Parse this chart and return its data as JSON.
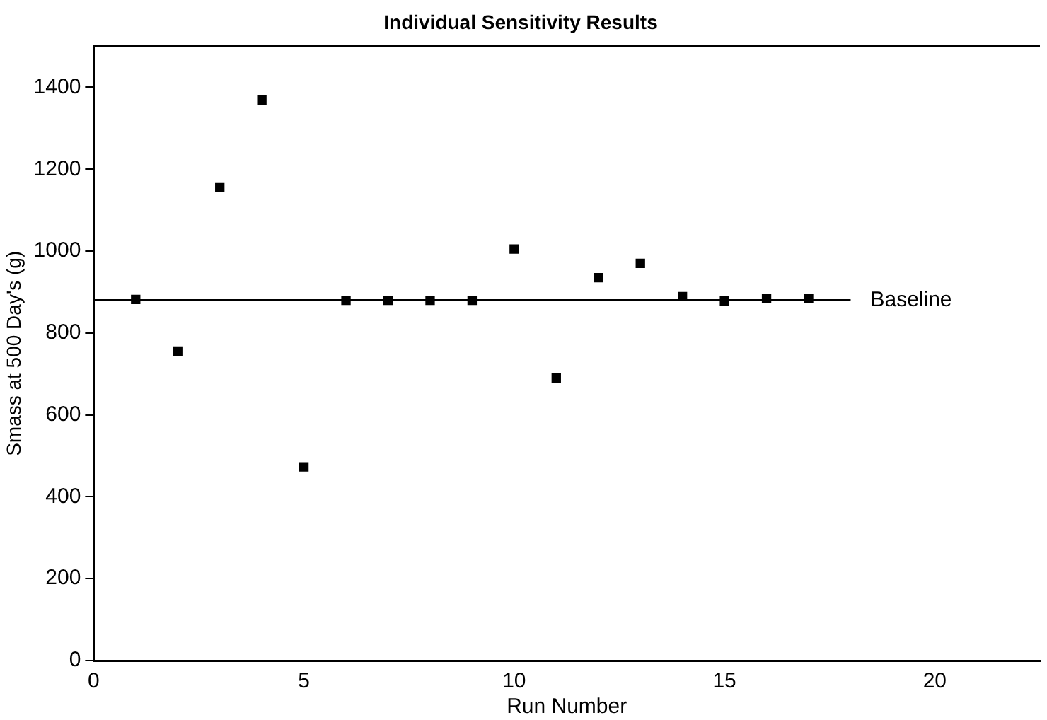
{
  "chart_data": {
    "type": "scatter",
    "title": "Individual Sensitivity Results",
    "xlabel": "Run Number",
    "ylabel": "Smass at 500 Day's (g)",
    "xlim": [
      0,
      22.5
    ],
    "xticks": [
      0,
      5,
      10,
      15,
      20
    ],
    "ylim": [
      0,
      1500
    ],
    "yticks": [
      0,
      200,
      400,
      600,
      800,
      1000,
      1200,
      1400
    ],
    "grid": false,
    "legend": false,
    "marker": "square",
    "series": [
      {
        "color": "#000000",
        "x": [
          1,
          2,
          3,
          4,
          5,
          6,
          7,
          8,
          9,
          10,
          11,
          12,
          13,
          14,
          15,
          16,
          17
        ],
        "values": [
          882,
          756,
          1155,
          1369,
          473,
          880,
          880,
          880,
          880,
          1005,
          690,
          935,
          970,
          889,
          878,
          885,
          885
        ]
      },
      {
        "type": "line",
        "name": "Baseline",
        "color": "#000000",
        "marker": "none",
        "line_style": "solid",
        "x": [
          0,
          18
        ],
        "values": [
          880,
          880
        ]
      }
    ]
  }
}
